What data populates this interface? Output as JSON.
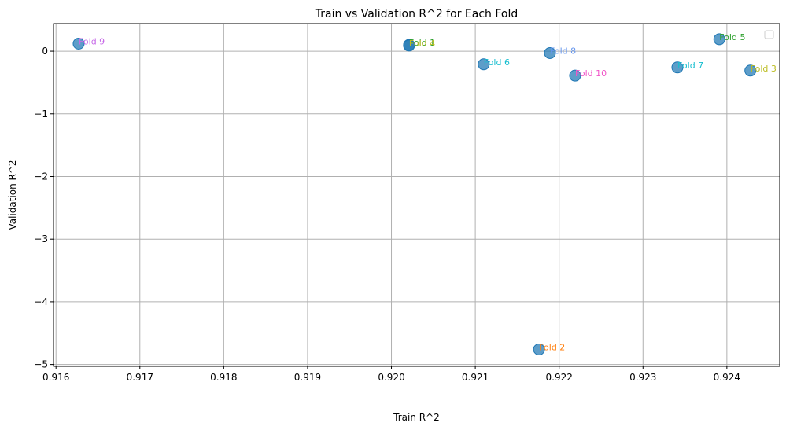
{
  "chart_data": {
    "type": "scatter",
    "title": "Train vs Validation R^2 for Each Fold",
    "xlabel": "Train R^2",
    "ylabel": "Validation R^2",
    "xlim": [
      0.91597,
      0.92463
    ],
    "ylim": [
      -5.03,
      0.44
    ],
    "xticks": [
      0.916,
      0.917,
      0.918,
      0.919,
      0.92,
      0.921,
      0.922,
      0.923,
      0.924
    ],
    "xtick_labels": [
      "0.916",
      "0.917",
      "0.918",
      "0.919",
      "0.920",
      "0.921",
      "0.922",
      "0.923",
      "0.924"
    ],
    "yticks": [
      -5,
      -4,
      -3,
      -2,
      -1,
      0
    ],
    "ytick_labels": [
      "−5",
      "−4",
      "−3",
      "−2",
      "−1",
      "0"
    ],
    "grid": true,
    "legend": "top-right (empty)",
    "marker_color": "#1f77b4",
    "points": [
      {
        "label": "Fold 1",
        "x": 0.92021,
        "y": 0.1,
        "label_color": "#2ca02c"
      },
      {
        "label": "Fold 2",
        "x": 0.92176,
        "y": -4.76,
        "label_color": "#ff7f0e"
      },
      {
        "label": "Fold 3",
        "x": 0.92428,
        "y": -0.31,
        "label_color": "#bcbd22"
      },
      {
        "label": "Fold 4",
        "x": 0.92021,
        "y": 0.09,
        "label_color": "#bcbd22"
      },
      {
        "label": "Fold 5",
        "x": 0.92391,
        "y": 0.19,
        "label_color": "#2ca02c"
      },
      {
        "label": "Fold 6",
        "x": 0.9211,
        "y": -0.21,
        "label_color": "#17becf"
      },
      {
        "label": "Fold 7",
        "x": 0.92341,
        "y": -0.26,
        "label_color": "#17becf"
      },
      {
        "label": "Fold 8",
        "x": 0.92189,
        "y": -0.03,
        "label_color": "#6495ed"
      },
      {
        "label": "Fold 9",
        "x": 0.91627,
        "y": 0.12,
        "label_color": "#c76ae8"
      },
      {
        "label": "Fold 10",
        "x": 0.92219,
        "y": -0.39,
        "label_color": "#f055c8"
      }
    ]
  }
}
